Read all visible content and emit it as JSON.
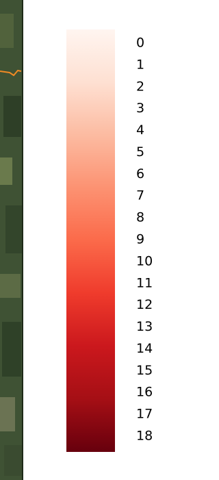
{
  "chart_data": {
    "type": "colorbar",
    "lim": [
      0,
      18
    ],
    "ticks": [
      0,
      1,
      2,
      3,
      4,
      5,
      6,
      7,
      8,
      9,
      10,
      11,
      12,
      13,
      14,
      15,
      16,
      17,
      18
    ],
    "colors": [
      "#fff5f0",
      "#fee0d2",
      "#fcbba1",
      "#fc9272",
      "#fb6a4a",
      "#ef3b2c",
      "#cb181d",
      "#a50f15",
      "#67000d"
    ]
  }
}
